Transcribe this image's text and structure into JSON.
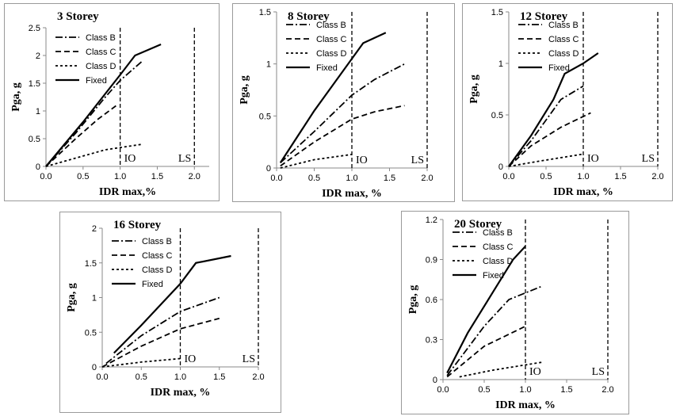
{
  "chart_data": [
    {
      "type": "line",
      "title": "3 Storey",
      "xlabel": "IDR max,%",
      "ylabel": "Pga, g",
      "xlim": [
        0,
        2.2
      ],
      "ylim": [
        0,
        2.5
      ],
      "xticks": [
        "0.0",
        "0.5",
        "1.0",
        "1.5",
        "2.0"
      ],
      "yticks": [
        "0",
        "0.5",
        "1",
        "1.5",
        "2",
        "2.5"
      ],
      "annotations": [
        "IO",
        "LS"
      ],
      "io_limit": 1.0,
      "ls_limit": 2.0,
      "series": [
        {
          "name": "Class B",
          "style": "dashdot",
          "x": [
            0,
            0.4,
            0.8,
            1.0,
            1.3
          ],
          "y": [
            0,
            0.6,
            1.25,
            1.55,
            1.9
          ]
        },
        {
          "name": "Class C",
          "style": "dash",
          "x": [
            0,
            0.4,
            0.7,
            0.95
          ],
          "y": [
            0,
            0.5,
            0.85,
            1.1
          ]
        },
        {
          "name": "Class D",
          "style": "dot",
          "x": [
            0,
            0.4,
            0.8,
            1.3
          ],
          "y": [
            0,
            0.15,
            0.3,
            0.4
          ]
        },
        {
          "name": "Fixed",
          "style": "solid",
          "x": [
            0,
            0.5,
            1.0,
            1.2,
            1.55
          ],
          "y": [
            0,
            0.8,
            1.65,
            2.0,
            2.2
          ]
        }
      ]
    },
    {
      "type": "line",
      "title": "8 Storey",
      "xlabel": "IDR max, %",
      "ylabel": "Pga, g",
      "xlim": [
        0,
        2.0
      ],
      "ylim": [
        0,
        1.5
      ],
      "xticks": [
        "0.0",
        "0.5",
        "1.0",
        "1.5",
        "2.0"
      ],
      "yticks": [
        "0",
        "0.5",
        "1",
        "1.5"
      ],
      "annotations": [
        "IO",
        "LS"
      ],
      "io_limit": 1.0,
      "ls_limit": 2.0,
      "series": [
        {
          "name": "Class B",
          "style": "dashdot",
          "x": [
            0.05,
            0.5,
            1.0,
            1.3,
            1.7
          ],
          "y": [
            0.05,
            0.35,
            0.7,
            0.85,
            1.0
          ]
        },
        {
          "name": "Class C",
          "style": "dash",
          "x": [
            0.05,
            0.5,
            1.0,
            1.3,
            1.7
          ],
          "y": [
            0.02,
            0.25,
            0.47,
            0.54,
            0.6
          ]
        },
        {
          "name": "Class D",
          "style": "dot",
          "x": [
            0.05,
            0.5,
            1.0
          ],
          "y": [
            0.0,
            0.08,
            0.13
          ]
        },
        {
          "name": "Fixed",
          "style": "solid",
          "x": [
            0.05,
            0.5,
            1.0,
            1.15,
            1.45
          ],
          "y": [
            0.05,
            0.55,
            1.05,
            1.2,
            1.3
          ]
        }
      ]
    },
    {
      "type": "line",
      "title": "12 Storey",
      "xlabel": "IDR max, %",
      "ylabel": "Pga, g",
      "xlim": [
        0,
        2.0
      ],
      "ylim": [
        0,
        1.5
      ],
      "xticks": [
        "0.0",
        "0.5",
        "1.0",
        "1.5",
        "2.0"
      ],
      "yticks": [
        "0",
        "0.5",
        "1",
        "1.5"
      ],
      "annotations": [
        "IO",
        "LS"
      ],
      "io_limit": 1.0,
      "ls_limit": 2.0,
      "series": [
        {
          "name": "Class B",
          "style": "dashdot",
          "x": [
            0,
            0.3,
            0.7,
            1.0
          ],
          "y": [
            0,
            0.25,
            0.65,
            0.78
          ]
        },
        {
          "name": "Class C",
          "style": "dash",
          "x": [
            0,
            0.3,
            0.7,
            1.1
          ],
          "y": [
            0,
            0.2,
            0.38,
            0.52
          ]
        },
        {
          "name": "Class D",
          "style": "dot",
          "x": [
            0,
            0.4,
            1.0
          ],
          "y": [
            0,
            0.05,
            0.12
          ]
        },
        {
          "name": "Fixed",
          "style": "solid",
          "x": [
            0,
            0.3,
            0.6,
            0.75,
            1.0,
            1.2
          ],
          "y": [
            0,
            0.3,
            0.65,
            0.9,
            1.0,
            1.1
          ]
        }
      ]
    },
    {
      "type": "line",
      "title": "16 Storey",
      "xlabel": "IDR max, %",
      "ylabel": "Pga, g",
      "xlim": [
        0,
        2.0
      ],
      "ylim": [
        0,
        2.0
      ],
      "xticks": [
        "0.0",
        "0.5",
        "1.0",
        "1.5",
        "2.0"
      ],
      "yticks": [
        "0",
        "0.5",
        "1",
        "1.5",
        "2"
      ],
      "annotations": [
        "IO",
        "LS"
      ],
      "io_limit": 1.0,
      "ls_limit": 2.0,
      "series": [
        {
          "name": "Class B",
          "style": "dashdot",
          "x": [
            0.05,
            0.5,
            1.0,
            1.5
          ],
          "y": [
            0.05,
            0.45,
            0.8,
            1.0
          ]
        },
        {
          "name": "Class C",
          "style": "dash",
          "x": [
            0,
            0.5,
            1.0,
            1.5
          ],
          "y": [
            0,
            0.3,
            0.55,
            0.7
          ]
        },
        {
          "name": "Class D",
          "style": "dot",
          "x": [
            0,
            0.5,
            1.0
          ],
          "y": [
            0,
            0.07,
            0.12
          ]
        },
        {
          "name": "Fixed",
          "style": "solid",
          "x": [
            0.15,
            0.5,
            1.0,
            1.2,
            1.65
          ],
          "y": [
            0.2,
            0.6,
            1.2,
            1.5,
            1.6
          ]
        }
      ]
    },
    {
      "type": "line",
      "title": "20 Storey",
      "xlabel": "IDR max, %",
      "ylabel": "Pga, g",
      "xlim": [
        0,
        2.0
      ],
      "ylim": [
        0,
        1.2
      ],
      "xticks": [
        "0.0",
        "0.5",
        "1.0",
        "1.5",
        "2.0"
      ],
      "yticks": [
        "0",
        "0.3",
        "0.6",
        "0.9",
        "1.2"
      ],
      "annotations": [
        "IO",
        "LS"
      ],
      "io_limit": 1.0,
      "ls_limit": 2.0,
      "series": [
        {
          "name": "Class B",
          "style": "dashdot",
          "x": [
            0.05,
            0.5,
            0.8,
            1.2
          ],
          "y": [
            0.03,
            0.4,
            0.6,
            0.7
          ]
        },
        {
          "name": "Class C",
          "style": "dash",
          "x": [
            0.05,
            0.5,
            1.0
          ],
          "y": [
            0.02,
            0.25,
            0.4
          ]
        },
        {
          "name": "Class D",
          "style": "dot",
          "x": [
            0.2,
            0.6,
            1.2
          ],
          "y": [
            0.02,
            0.07,
            0.13
          ]
        },
        {
          "name": "Fixed",
          "style": "solid",
          "x": [
            0.05,
            0.3,
            0.6,
            0.85,
            1.0
          ],
          "y": [
            0.05,
            0.35,
            0.65,
            0.9,
            1.0
          ]
        }
      ]
    }
  ]
}
